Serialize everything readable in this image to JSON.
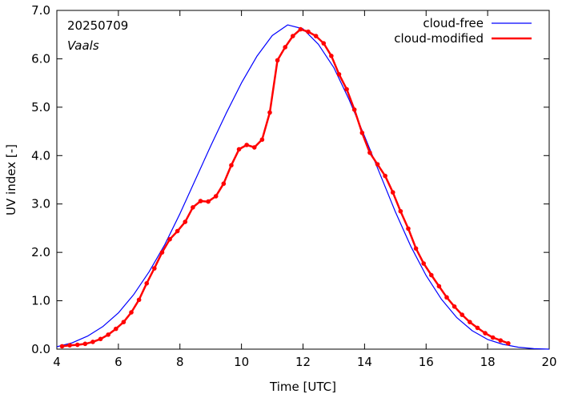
{
  "chart_data": {
    "type": "line",
    "title": "",
    "xlabel": "Time  [UTC]",
    "ylabel": "UV index  [-]",
    "xlim": [
      4,
      20
    ],
    "ylim": [
      0,
      7
    ],
    "xticks": [
      4,
      6,
      8,
      10,
      12,
      14,
      16,
      18,
      20
    ],
    "xtick_labels": [
      "4",
      "6",
      "8",
      "10",
      "12",
      "14",
      "16",
      "18",
      "20"
    ],
    "yticks": [
      0,
      1,
      2,
      3,
      4,
      5,
      6,
      7
    ],
    "ytick_labels": [
      "0.0",
      "1.0",
      "2.0",
      "3.0",
      "4.0",
      "5.0",
      "6.0",
      "7.0"
    ],
    "grid": false,
    "legend_position": "top-right",
    "annotations": {
      "date": "20250709",
      "location": "Vaals"
    },
    "series": [
      {
        "name": "cloud-free",
        "color": "#0000ff",
        "marker": "none",
        "x": [
          4.0,
          4.5,
          5.0,
          5.5,
          6.0,
          6.5,
          7.0,
          7.5,
          8.0,
          8.5,
          9.0,
          9.5,
          10.0,
          10.5,
          11.0,
          11.5,
          12.0,
          12.5,
          13.0,
          13.5,
          14.0,
          14.5,
          15.0,
          15.5,
          16.0,
          16.5,
          17.0,
          17.5,
          18.0,
          18.5,
          19.0,
          19.5,
          20.0
        ],
        "y": [
          0.05,
          0.13,
          0.27,
          0.47,
          0.75,
          1.13,
          1.6,
          2.15,
          2.8,
          3.5,
          4.2,
          4.87,
          5.5,
          6.05,
          6.48,
          6.7,
          6.62,
          6.3,
          5.82,
          5.15,
          4.4,
          3.62,
          2.84,
          2.13,
          1.52,
          1.03,
          0.65,
          0.38,
          0.2,
          0.1,
          0.04,
          0.01,
          0.0
        ]
      },
      {
        "name": "cloud-modified",
        "color": "#ff0000",
        "marker": "circle",
        "x": [
          4.17,
          4.42,
          4.67,
          4.92,
          5.17,
          5.42,
          5.67,
          5.92,
          6.17,
          6.42,
          6.67,
          6.92,
          7.17,
          7.42,
          7.67,
          7.92,
          8.17,
          8.42,
          8.67,
          8.92,
          9.17,
          9.42,
          9.67,
          9.92,
          10.17,
          10.42,
          10.67,
          10.92,
          11.17,
          11.42,
          11.67,
          11.92,
          12.17,
          12.42,
          12.67,
          12.92,
          13.17,
          13.42,
          13.67,
          13.92,
          14.17,
          14.42,
          14.67,
          14.92,
          15.17,
          15.42,
          15.67,
          15.92,
          16.17,
          16.42,
          16.67,
          16.92,
          17.17,
          17.42,
          17.67,
          17.92,
          18.17,
          18.42,
          18.67
        ],
        "y": [
          0.06,
          0.08,
          0.09,
          0.11,
          0.15,
          0.21,
          0.3,
          0.42,
          0.56,
          0.76,
          1.02,
          1.36,
          1.67,
          2.0,
          2.27,
          2.44,
          2.63,
          2.93,
          3.06,
          3.05,
          3.16,
          3.42,
          3.8,
          4.13,
          4.22,
          4.17,
          4.33,
          4.89,
          5.97,
          6.24,
          6.47,
          6.61,
          6.56,
          6.47,
          6.32,
          6.06,
          5.68,
          5.37,
          4.95,
          4.47,
          4.06,
          3.82,
          3.58,
          3.24,
          2.85,
          2.49,
          2.08,
          1.77,
          1.53,
          1.3,
          1.07,
          0.88,
          0.71,
          0.56,
          0.44,
          0.33,
          0.24,
          0.18,
          0.12
        ]
      }
    ]
  }
}
